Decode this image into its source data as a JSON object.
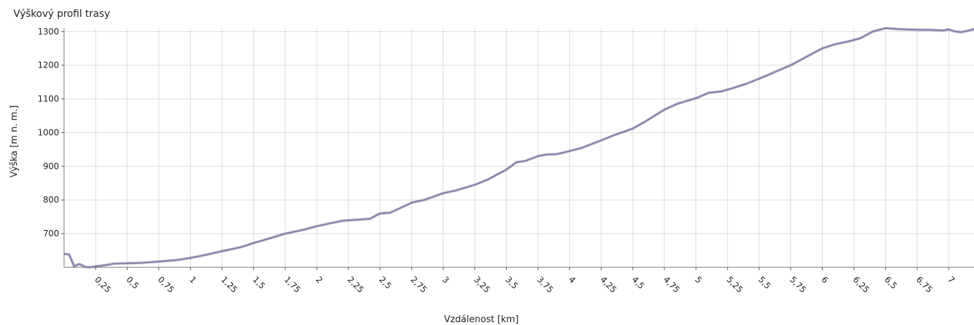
{
  "chart_data": {
    "type": "area",
    "title": "Výškový profil trasy",
    "xlabel": "Vzdálenost [km]",
    "ylabel": "Výška [m n. m.]",
    "xlim": [
      0,
      7.2
    ],
    "ylim": [
      600,
      1310
    ],
    "yticks": [
      700,
      800,
      900,
      1000,
      1100,
      1200,
      1300
    ],
    "xticks": [
      0.25,
      0.5,
      0.75,
      1,
      1.25,
      1.5,
      1.75,
      2,
      2.25,
      2.5,
      2.75,
      3,
      3.25,
      3.5,
      3.75,
      4,
      4.25,
      4.5,
      4.75,
      5,
      5.25,
      5.5,
      5.75,
      6,
      6.25,
      6.5,
      6.75,
      7
    ],
    "xtick_labels": [
      "0,25",
      "0,5",
      "0,75",
      "1",
      "1,25",
      "1,5",
      "1,75",
      "2",
      "2,25",
      "2,5",
      "2,75",
      "3",
      "3,25",
      "3,5",
      "3,75",
      "4",
      "4,25",
      "4,5",
      "4,75",
      "5",
      "5,25",
      "5,5",
      "5,75",
      "6",
      "6,25",
      "6,5",
      "6,75",
      "7"
    ],
    "grid": true,
    "line_color": "#8080a8",
    "series": [
      {
        "x": [
          0,
          0.04,
          0.08,
          0.12,
          0.17,
          0.2,
          0.25,
          0.3,
          0.35,
          0.4,
          0.5,
          0.6,
          0.75,
          0.9,
          1.0,
          1.1,
          1.25,
          1.4,
          1.5,
          1.6,
          1.75,
          1.9,
          2.0,
          2.1,
          2.2,
          2.35,
          2.42,
          2.5,
          2.58,
          2.7,
          2.75,
          2.85,
          3.0,
          3.1,
          3.25,
          3.35,
          3.5,
          3.58,
          3.65,
          3.75,
          3.82,
          3.9,
          4.0,
          4.1,
          4.25,
          4.35,
          4.5,
          4.6,
          4.75,
          4.85,
          5.0,
          5.05,
          5.1,
          5.2,
          5.3,
          5.4,
          5.5,
          5.6,
          5.75,
          5.9,
          6.0,
          6.1,
          6.2,
          6.3,
          6.4,
          6.5,
          6.6,
          6.75,
          6.85,
          6.95,
          7.0,
          7.05,
          7.1,
          7.15,
          7.2
        ],
        "y": [
          640,
          638,
          603,
          610,
          601,
          600,
          603,
          605,
          608,
          611,
          612,
          613,
          617,
          622,
          628,
          635,
          648,
          660,
          672,
          683,
          700,
          712,
          722,
          730,
          738,
          742,
          744,
          760,
          762,
          783,
          792,
          800,
          820,
          828,
          845,
          860,
          890,
          912,
          916,
          930,
          935,
          936,
          945,
          955,
          977,
          992,
          1012,
          1033,
          1068,
          1085,
          1102,
          1110,
          1118,
          1122,
          1133,
          1145,
          1160,
          1176,
          1200,
          1230,
          1250,
          1262,
          1270,
          1280,
          1300,
          1310,
          1307,
          1305,
          1305,
          1303,
          1306,
          1300,
          1298,
          1302,
          1307
        ]
      }
    ]
  }
}
